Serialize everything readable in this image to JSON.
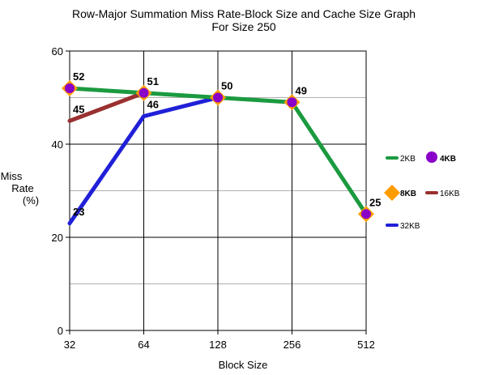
{
  "chart_data": {
    "type": "line",
    "title": "Row-Major Summation Miss Rate-Block Size and Cache Size Graph",
    "subtitle": "For Size 250",
    "xlabel": "Block Size",
    "ylabel": [
      "Miss",
      "Rate",
      "(%)"
    ],
    "categories": [
      "32",
      "64",
      "128",
      "256",
      "512"
    ],
    "ylim": [
      0,
      60
    ],
    "y_ticks": [
      0,
      20,
      40,
      60
    ],
    "grid": true,
    "legend_position": "right",
    "series": [
      {
        "name": "2KB",
        "values": [
          52,
          51,
          50,
          49,
          25
        ],
        "color": "#1b9a3f",
        "marker": "none"
      },
      {
        "name": "4KB",
        "values": [
          52,
          51,
          50,
          49,
          25
        ],
        "color": "#8a00c9",
        "marker": "circle"
      },
      {
        "name": "8KB",
        "values": [
          52,
          51,
          50,
          49,
          25
        ],
        "color": "#ff9c00",
        "marker": "diamond"
      },
      {
        "name": "16KB",
        "values": [
          45,
          51,
          null,
          null,
          null
        ],
        "color": "#9a3030",
        "marker": "none"
      },
      {
        "name": "32KB",
        "values": [
          23,
          46,
          50,
          null,
          null
        ],
        "color": "#2020d8",
        "marker": "none"
      }
    ]
  }
}
